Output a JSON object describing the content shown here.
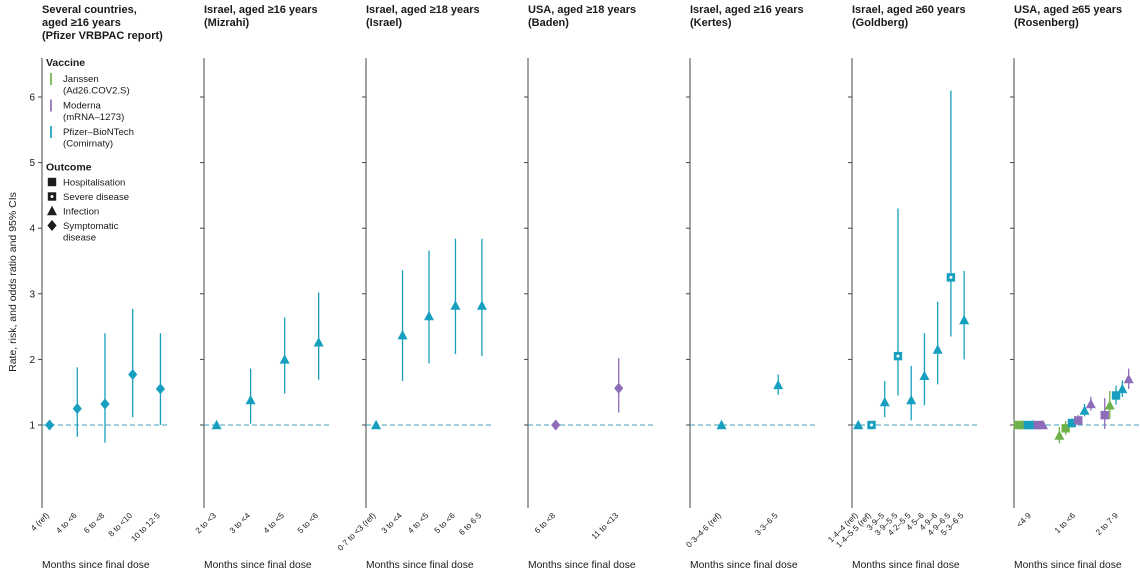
{
  "figure": {
    "y_axis_label": "Rate, risk, and odds ratio and 95% CIs",
    "x_axis_label": "Months since final dose",
    "y_ticks": [
      1,
      2,
      3,
      4,
      5,
      6
    ],
    "colors": {
      "janssen": "#6fb24c",
      "moderna": "#8f6cb8",
      "pfizer": "#169fbe",
      "ref_line": "#39a0bf",
      "legend_marker": "#1d1d1d",
      "axis": "#444444",
      "text": "#1a1a1a"
    },
    "legend": {
      "vaccine_title": "Vaccine",
      "vaccines": [
        {
          "key": "janssen",
          "lines": [
            "Janssen",
            "(Ad26.COV2.S)"
          ]
        },
        {
          "key": "moderna",
          "lines": [
            "Moderna",
            "(mRNA–1273)"
          ]
        },
        {
          "key": "pfizer",
          "lines": [
            "Pfizer–BioNTech",
            "(Comirnaty)"
          ]
        }
      ],
      "outcome_title": "Outcome",
      "outcomes": [
        {
          "shape": "square",
          "lines": [
            "Hospitalisation"
          ]
        },
        {
          "shape": "square-dot",
          "lines": [
            "Severe disease"
          ]
        },
        {
          "shape": "triangle",
          "lines": [
            "Infection"
          ]
        },
        {
          "shape": "diamond",
          "lines": [
            "Symptomatic",
            "disease"
          ]
        }
      ]
    }
  },
  "chart_data": [
    {
      "type": "scatter",
      "title": [
        "Several countries,",
        "aged ≥16 years",
        "(Pfizer VRBPAC report)"
      ],
      "ylim": [
        0.4,
        6.6
      ],
      "x_labels": [
        {
          "text": "4 (ref)",
          "xf": 0.06
        },
        {
          "text": "4 to <6",
          "xf": 0.28
        },
        {
          "text": "6 to <8",
          "xf": 0.5
        },
        {
          "text": "8 to <10",
          "xf": 0.72
        },
        {
          "text": "10 to 12·5",
          "xf": 0.94
        }
      ],
      "points": [
        {
          "xf": 0.06,
          "vaccine": "pfizer",
          "outcome": "symptomatic-disease",
          "y": 1.0,
          "lo": 1.0,
          "hi": 1.0
        },
        {
          "xf": 0.28,
          "vaccine": "pfizer",
          "outcome": "symptomatic-disease",
          "y": 1.25,
          "lo": 0.82,
          "hi": 1.88
        },
        {
          "xf": 0.5,
          "vaccine": "pfizer",
          "outcome": "symptomatic-disease",
          "y": 1.32,
          "lo": 0.73,
          "hi": 2.4
        },
        {
          "xf": 0.72,
          "vaccine": "pfizer",
          "outcome": "symptomatic-disease",
          "y": 1.77,
          "lo": 1.12,
          "hi": 2.77
        },
        {
          "xf": 0.94,
          "vaccine": "pfizer",
          "outcome": "symptomatic-disease",
          "y": 1.55,
          "lo": 1.0,
          "hi": 2.4
        }
      ]
    },
    {
      "type": "scatter",
      "title": [
        "Israel, aged ≥16 years",
        "(Mizrahi)"
      ],
      "ylim": [
        0.4,
        6.6
      ],
      "x_labels": [
        {
          "text": "2 to <3",
          "xf": 0.1
        },
        {
          "text": "3 to <4",
          "xf": 0.37
        },
        {
          "text": "4 to <5",
          "xf": 0.64
        },
        {
          "text": "5 to <6",
          "xf": 0.91
        }
      ],
      "points": [
        {
          "xf": 0.1,
          "vaccine": "pfizer",
          "outcome": "infection",
          "y": 1.0,
          "lo": 1.0,
          "hi": 1.0
        },
        {
          "xf": 0.37,
          "vaccine": "pfizer",
          "outcome": "infection",
          "y": 1.38,
          "lo": 1.02,
          "hi": 1.86
        },
        {
          "xf": 0.64,
          "vaccine": "pfizer",
          "outcome": "infection",
          "y": 2.0,
          "lo": 1.48,
          "hi": 2.64
        },
        {
          "xf": 0.91,
          "vaccine": "pfizer",
          "outcome": "infection",
          "y": 2.26,
          "lo": 1.69,
          "hi": 3.02
        }
      ]
    },
    {
      "type": "scatter",
      "title": [
        "Israel, aged ≥18 years",
        "(Israel)"
      ],
      "ylim": [
        0.4,
        6.6
      ],
      "x_labels": [
        {
          "text": "0·7 to <3 (ref)",
          "xf": 0.08
        },
        {
          "text": "3 to <4",
          "xf": 0.29
        },
        {
          "text": "4 to <5",
          "xf": 0.5
        },
        {
          "text": "5 to <6",
          "xf": 0.71
        },
        {
          "text": "6 to 6·5",
          "xf": 0.92
        }
      ],
      "points": [
        {
          "xf": 0.08,
          "vaccine": "pfizer",
          "outcome": "infection",
          "y": 1.0,
          "lo": 1.0,
          "hi": 1.0
        },
        {
          "xf": 0.29,
          "vaccine": "pfizer",
          "outcome": "infection",
          "y": 2.37,
          "lo": 1.67,
          "hi": 3.36
        },
        {
          "xf": 0.5,
          "vaccine": "pfizer",
          "outcome": "infection",
          "y": 2.66,
          "lo": 1.94,
          "hi": 3.66
        },
        {
          "xf": 0.71,
          "vaccine": "pfizer",
          "outcome": "infection",
          "y": 2.82,
          "lo": 2.08,
          "hi": 3.84
        },
        {
          "xf": 0.92,
          "vaccine": "pfizer",
          "outcome": "infection",
          "y": 2.82,
          "lo": 2.05,
          "hi": 3.84
        }
      ]
    },
    {
      "type": "scatter",
      "title": [
        "USA, aged ≥18 years",
        "(Baden)"
      ],
      "ylim": [
        0.4,
        6.6
      ],
      "x_labels": [
        {
          "text": "6 to <8",
          "xf": 0.22
        },
        {
          "text": "11 to <13",
          "xf": 0.72
        }
      ],
      "points": [
        {
          "xf": 0.22,
          "vaccine": "moderna",
          "outcome": "symptomatic-disease",
          "y": 1.0,
          "lo": 1.0,
          "hi": 1.0
        },
        {
          "xf": 0.72,
          "vaccine": "moderna",
          "outcome": "symptomatic-disease",
          "y": 1.56,
          "lo": 1.19,
          "hi": 2.02
        }
      ]
    },
    {
      "type": "scatter",
      "title": [
        "Israel, aged ≥16 years",
        "(Kertes)"
      ],
      "ylim": [
        0.4,
        6.6
      ],
      "x_labels": [
        {
          "text": "0·3–4·6 (ref)",
          "xf": 0.25
        },
        {
          "text": "3·3–6·5",
          "xf": 0.7
        }
      ],
      "points": [
        {
          "xf": 0.25,
          "vaccine": "pfizer",
          "outcome": "infection",
          "y": 1.0,
          "lo": 1.0,
          "hi": 1.0
        },
        {
          "xf": 0.7,
          "vaccine": "pfizer",
          "outcome": "infection",
          "y": 1.61,
          "lo": 1.46,
          "hi": 1.77
        }
      ]
    },
    {
      "type": "scatter",
      "title": [
        "Israel, aged ≥60 years",
        "(Goldberg)"
      ],
      "ylim": [
        0.4,
        6.6
      ],
      "x_labels": [
        {
          "text": "1·4–4 (ref)",
          "xf": 0.05
        },
        {
          "text": "1·4–5·5 (ref)",
          "xf": 0.155
        },
        {
          "text": "3·9–5",
          "xf": 0.26
        },
        {
          "text": "3·9–5·5",
          "xf": 0.365
        },
        {
          "text": "4·2–5·5",
          "xf": 0.47
        },
        {
          "text": "4·5–6",
          "xf": 0.575
        },
        {
          "text": "4·9–6",
          "xf": 0.68
        },
        {
          "text": "4·9–6·5",
          "xf": 0.785
        },
        {
          "text": "5·3–6·5",
          "xf": 0.89
        }
      ],
      "points": [
        {
          "xf": 0.05,
          "vaccine": "pfizer",
          "outcome": "infection",
          "y": 1.0,
          "lo": 1.0,
          "hi": 1.0
        },
        {
          "xf": 0.155,
          "vaccine": "pfizer",
          "outcome": "severe-disease",
          "y": 1.0,
          "lo": 1.0,
          "hi": 1.0
        },
        {
          "xf": 0.26,
          "vaccine": "pfizer",
          "outcome": "infection",
          "y": 1.35,
          "lo": 1.12,
          "hi": 1.67
        },
        {
          "xf": 0.365,
          "vaccine": "pfizer",
          "outcome": "severe-disease",
          "y": 2.05,
          "lo": 1.45,
          "hi": 4.3
        },
        {
          "xf": 0.47,
          "vaccine": "pfizer",
          "outcome": "infection",
          "y": 1.38,
          "lo": 1.07,
          "hi": 1.9
        },
        {
          "xf": 0.575,
          "vaccine": "pfizer",
          "outcome": "infection",
          "y": 1.75,
          "lo": 1.3,
          "hi": 2.4
        },
        {
          "xf": 0.68,
          "vaccine": "pfizer",
          "outcome": "infection",
          "y": 2.15,
          "lo": 1.62,
          "hi": 2.88
        },
        {
          "xf": 0.785,
          "vaccine": "pfizer",
          "outcome": "severe-disease",
          "y": 3.25,
          "lo": 2.35,
          "hi": 6.1
        },
        {
          "xf": 0.89,
          "vaccine": "pfizer",
          "outcome": "infection",
          "y": 2.6,
          "lo": 2.0,
          "hi": 3.35
        }
      ]
    },
    {
      "type": "scatter",
      "title": [
        "USA, aged ≥65 years",
        "(Rosenberg)"
      ],
      "ylim": [
        0.4,
        6.6
      ],
      "x_labels": [
        {
          "text": "<4·9",
          "xf": 0.14
        },
        {
          "text": "1 to <6",
          "xf": 0.49
        },
        {
          "text": "2 to 7·9",
          "xf": 0.83
        }
      ],
      "points": [
        {
          "xf": 0.03,
          "vaccine": "janssen",
          "outcome": "hospitalisation",
          "y": 1.0,
          "lo": 1.0,
          "hi": 1.0
        },
        {
          "xf": 0.07,
          "vaccine": "janssen",
          "outcome": "infection",
          "y": 1.0,
          "lo": 1.0,
          "hi": 1.0
        },
        {
          "xf": 0.11,
          "vaccine": "pfizer",
          "outcome": "hospitalisation",
          "y": 1.0,
          "lo": 1.0,
          "hi": 1.0
        },
        {
          "xf": 0.15,
          "vaccine": "pfizer",
          "outcome": "infection",
          "y": 1.0,
          "lo": 1.0,
          "hi": 1.0
        },
        {
          "xf": 0.19,
          "vaccine": "moderna",
          "outcome": "hospitalisation",
          "y": 1.0,
          "lo": 1.0,
          "hi": 1.0
        },
        {
          "xf": 0.23,
          "vaccine": "moderna",
          "outcome": "infection",
          "y": 1.0,
          "lo": 1.0,
          "hi": 1.0
        },
        {
          "xf": 0.36,
          "vaccine": "janssen",
          "outcome": "infection",
          "y": 0.84,
          "lo": 0.72,
          "hi": 0.97
        },
        {
          "xf": 0.41,
          "vaccine": "janssen",
          "outcome": "hospitalisation",
          "y": 0.95,
          "lo": 0.85,
          "hi": 1.06
        },
        {
          "xf": 0.46,
          "vaccine": "pfizer",
          "outcome": "hospitalisation",
          "y": 1.03,
          "lo": 0.96,
          "hi": 1.1
        },
        {
          "xf": 0.51,
          "vaccine": "moderna",
          "outcome": "hospitalisation",
          "y": 1.07,
          "lo": 1.0,
          "hi": 1.15
        },
        {
          "xf": 0.56,
          "vaccine": "pfizer",
          "outcome": "infection",
          "y": 1.22,
          "lo": 1.13,
          "hi": 1.32
        },
        {
          "xf": 0.61,
          "vaccine": "moderna",
          "outcome": "infection",
          "y": 1.32,
          "lo": 1.22,
          "hi": 1.43
        },
        {
          "xf": 0.72,
          "vaccine": "moderna",
          "outcome": "hospitalisation",
          "y": 1.15,
          "lo": 0.94,
          "hi": 1.41
        },
        {
          "xf": 0.76,
          "vaccine": "janssen",
          "outcome": "infection",
          "y": 1.3,
          "lo": 1.09,
          "hi": 1.52
        },
        {
          "xf": 0.81,
          "vaccine": "pfizer",
          "outcome": "hospitalisation",
          "y": 1.45,
          "lo": 1.31,
          "hi": 1.6
        },
        {
          "xf": 0.86,
          "vaccine": "pfizer",
          "outcome": "infection",
          "y": 1.55,
          "lo": 1.43,
          "hi": 1.68
        },
        {
          "xf": 0.91,
          "vaccine": "moderna",
          "outcome": "infection",
          "y": 1.7,
          "lo": 1.55,
          "hi": 1.86
        }
      ]
    }
  ]
}
